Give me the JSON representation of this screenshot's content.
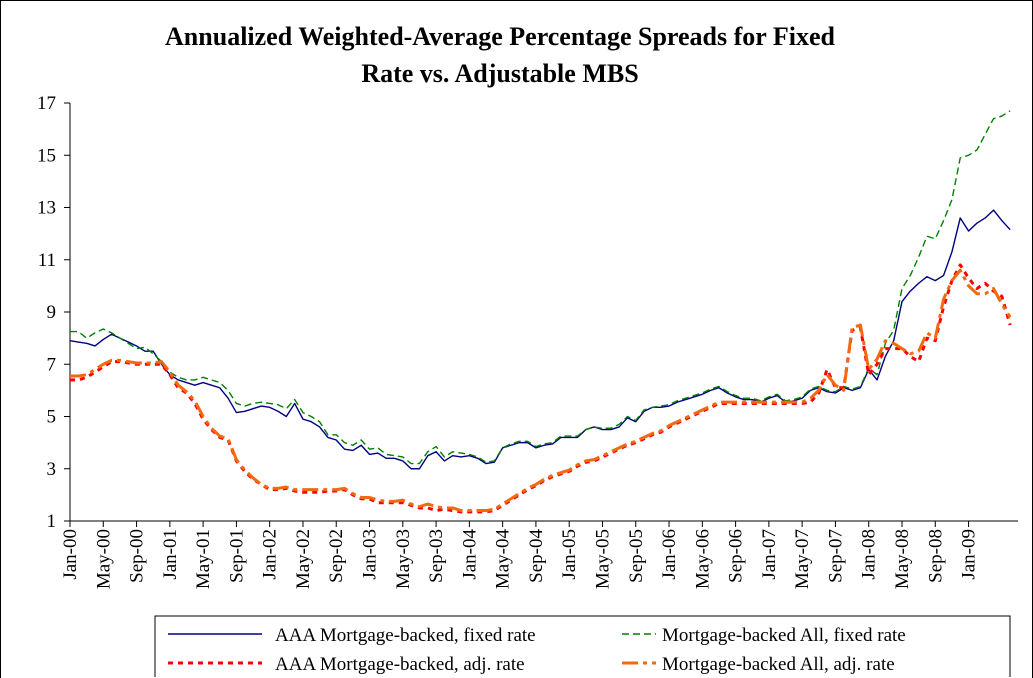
{
  "chart_data": {
    "type": "line",
    "title": "Annualized Weighted-Average Percentage Spreads for Fixed Rate vs. Adjustable MBS",
    "categories": [
      "Jan-00",
      null,
      null,
      null,
      "May-00",
      null,
      null,
      null,
      "Sep-00",
      null,
      null,
      null,
      "Jan-01",
      null,
      null,
      null,
      "May-01",
      null,
      null,
      null,
      "Sep-01",
      null,
      null,
      null,
      "Jan-02",
      null,
      null,
      null,
      "May-02",
      null,
      null,
      null,
      "Sep-02",
      null,
      null,
      null,
      "Jan-03",
      null,
      null,
      null,
      "May-03",
      null,
      null,
      null,
      "Sep-03",
      null,
      null,
      null,
      "Jan-04",
      null,
      null,
      null,
      "May-04",
      null,
      null,
      null,
      "Sep-04",
      null,
      null,
      null,
      "Jan-05",
      null,
      null,
      null,
      "May-05",
      null,
      null,
      null,
      "Sep-05",
      null,
      null,
      null,
      "Jan-06",
      null,
      null,
      null,
      "May-06",
      null,
      null,
      null,
      "Sep-06",
      null,
      null,
      null,
      "Jan-07",
      null,
      null,
      null,
      "May-07",
      null,
      null,
      null,
      "Sep-07",
      null,
      null,
      null,
      "Jan-08",
      null,
      null,
      null,
      "May-08",
      null,
      null,
      null,
      "Sep-08",
      null,
      null,
      null,
      "Jan-09",
      null,
      null,
      null,
      null,
      null
    ],
    "ylim": [
      1,
      17
    ],
    "yticks": [
      1,
      3,
      5,
      7,
      9,
      11,
      13,
      15,
      17
    ],
    "legend": "bottom",
    "series": [
      {
        "name": "AAA Mortgage-backed, fixed rate",
        "color": "#000080",
        "linestyle": "solid",
        "values": [
          7.9,
          7.85,
          7.8,
          7.7,
          7.95,
          8.15,
          8.0,
          7.85,
          7.7,
          7.5,
          7.5,
          7.0,
          6.6,
          6.4,
          6.3,
          6.2,
          6.3,
          6.2,
          6.1,
          5.7,
          5.15,
          5.2,
          5.3,
          5.4,
          5.35,
          5.2,
          5.0,
          5.5,
          4.9,
          4.8,
          4.6,
          4.2,
          4.1,
          3.75,
          3.7,
          3.9,
          3.55,
          3.6,
          3.4,
          3.4,
          3.3,
          3.0,
          3.0,
          3.5,
          3.65,
          3.3,
          3.5,
          3.45,
          3.5,
          3.4,
          3.2,
          3.25,
          3.8,
          3.9,
          4.0,
          4.0,
          3.8,
          3.9,
          3.95,
          4.2,
          4.2,
          4.2,
          4.5,
          4.6,
          4.5,
          4.5,
          4.6,
          4.95,
          4.8,
          5.2,
          5.35,
          5.35,
          5.4,
          5.55,
          5.65,
          5.75,
          5.85,
          6.0,
          6.1,
          5.9,
          5.75,
          5.65,
          5.65,
          5.55,
          5.7,
          5.8,
          5.55,
          5.6,
          5.7,
          6.0,
          6.1,
          5.95,
          5.9,
          6.1,
          6.0,
          6.1,
          6.8,
          6.4,
          7.3,
          7.9,
          9.4,
          9.8,
          10.1,
          10.35,
          10.2,
          10.4,
          11.3,
          12.6,
          12.1,
          12.4,
          12.6,
          12.9,
          12.5,
          12.15
        ]
      },
      {
        "name": "Mortgage-backed All, fixed rate",
        "color": "#008000",
        "linestyle": "dashed",
        "values": [
          8.25,
          8.25,
          8.0,
          8.2,
          8.35,
          8.2,
          8.0,
          7.8,
          7.6,
          7.65,
          7.4,
          7.1,
          6.7,
          6.5,
          6.4,
          6.4,
          6.5,
          6.4,
          6.3,
          6.0,
          5.5,
          5.4,
          5.5,
          5.55,
          5.5,
          5.45,
          5.3,
          5.65,
          5.15,
          5.0,
          4.8,
          4.3,
          4.3,
          4.0,
          3.9,
          4.1,
          3.75,
          3.8,
          3.55,
          3.5,
          3.45,
          3.2,
          3.2,
          3.65,
          3.85,
          3.45,
          3.65,
          3.6,
          3.55,
          3.45,
          3.25,
          3.3,
          3.8,
          3.95,
          4.05,
          4.05,
          3.85,
          3.95,
          4.0,
          4.25,
          4.25,
          4.25,
          4.5,
          4.6,
          4.55,
          4.55,
          4.7,
          5.0,
          4.85,
          5.25,
          5.35,
          5.4,
          5.45,
          5.6,
          5.7,
          5.8,
          5.9,
          6.05,
          6.15,
          5.95,
          5.8,
          5.7,
          5.7,
          5.6,
          5.75,
          5.85,
          5.6,
          5.65,
          5.75,
          6.05,
          6.15,
          6.0,
          5.95,
          6.15,
          6.05,
          6.15,
          6.85,
          6.6,
          7.8,
          8.3,
          9.9,
          10.4,
          11.1,
          11.9,
          11.8,
          12.5,
          13.3,
          14.9,
          15.0,
          15.2,
          15.8,
          16.4,
          16.5,
          16.7
        ]
      },
      {
        "name": "AAA Mortgage-backed, adj. rate",
        "color": "#ff0000",
        "linestyle": "dotted",
        "values": [
          6.4,
          6.4,
          6.5,
          6.7,
          6.9,
          7.1,
          7.1,
          7.05,
          7.0,
          7.0,
          7.0,
          7.0,
          6.6,
          6.1,
          5.9,
          5.5,
          4.9,
          4.5,
          4.2,
          4.1,
          3.3,
          2.9,
          2.6,
          2.4,
          2.2,
          2.2,
          2.25,
          2.15,
          2.1,
          2.1,
          2.1,
          2.15,
          2.15,
          2.2,
          2.0,
          1.85,
          1.85,
          1.7,
          1.7,
          1.7,
          1.7,
          1.6,
          1.5,
          1.5,
          1.4,
          1.45,
          1.4,
          1.35,
          1.35,
          1.35,
          1.35,
          1.4,
          1.6,
          1.8,
          2.0,
          2.2,
          2.35,
          2.55,
          2.7,
          2.8,
          2.9,
          3.1,
          3.25,
          3.3,
          3.45,
          3.6,
          3.75,
          3.9,
          4.0,
          4.15,
          4.3,
          4.4,
          4.6,
          4.75,
          4.9,
          5.05,
          5.2,
          5.35,
          5.5,
          5.5,
          5.5,
          5.5,
          5.5,
          5.5,
          5.5,
          5.5,
          5.5,
          5.5,
          5.5,
          5.55,
          5.9,
          6.8,
          6.1,
          6.1,
          8.3,
          8.4,
          6.6,
          7.0,
          7.6,
          7.6,
          7.6,
          7.3,
          7.1,
          8.0,
          7.9,
          9.2,
          10.2,
          10.8,
          10.3,
          9.9,
          10.1,
          9.8,
          9.6,
          8.5
        ]
      },
      {
        "name": "Mortgage-backed All, adj. rate",
        "color": "#f26a10",
        "linestyle": "dashdot",
        "values": [
          6.55,
          6.55,
          6.6,
          6.8,
          7.0,
          7.15,
          7.15,
          7.1,
          7.05,
          7.05,
          7.05,
          7.1,
          6.7,
          6.2,
          5.95,
          5.6,
          5.0,
          4.55,
          4.25,
          4.15,
          3.35,
          2.95,
          2.65,
          2.4,
          2.25,
          2.25,
          2.3,
          2.2,
          2.2,
          2.2,
          2.2,
          2.2,
          2.2,
          2.25,
          2.05,
          1.9,
          1.9,
          1.8,
          1.75,
          1.75,
          1.8,
          1.65,
          1.55,
          1.65,
          1.55,
          1.5,
          1.5,
          1.4,
          1.4,
          1.4,
          1.4,
          1.45,
          1.65,
          1.85,
          2.05,
          2.25,
          2.4,
          2.6,
          2.75,
          2.85,
          2.95,
          3.15,
          3.3,
          3.35,
          3.5,
          3.65,
          3.8,
          3.95,
          4.05,
          4.2,
          4.35,
          4.45,
          4.65,
          4.8,
          4.95,
          5.1,
          5.25,
          5.4,
          5.55,
          5.55,
          5.55,
          5.55,
          5.55,
          5.55,
          5.55,
          5.55,
          5.55,
          5.55,
          5.55,
          5.7,
          6.0,
          6.6,
          6.2,
          6.0,
          8.4,
          8.5,
          6.8,
          7.2,
          7.9,
          7.8,
          7.6,
          7.4,
          7.5,
          8.2,
          8.0,
          9.5,
          10.2,
          10.6,
          10.0,
          9.7,
          9.7,
          9.9,
          9.3,
          8.8
        ]
      }
    ]
  }
}
